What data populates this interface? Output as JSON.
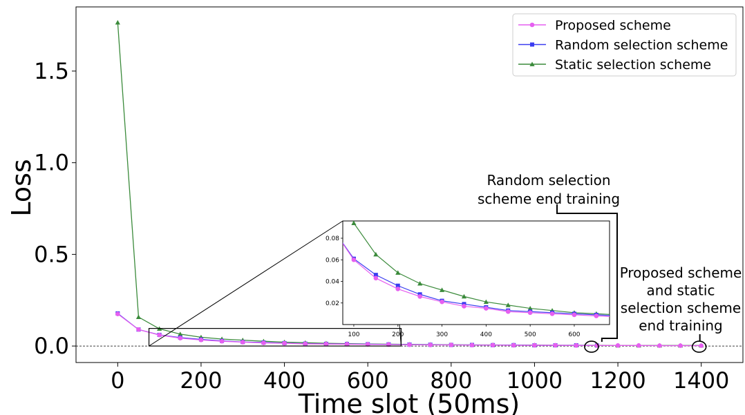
{
  "chart_data": {
    "type": "line",
    "xlabel": "Time slot (50ms)",
    "ylabel": "Loss",
    "xlim": [
      -100,
      1500
    ],
    "ylim": [
      -0.09,
      1.85
    ],
    "xticks": [
      "0",
      "200",
      "400",
      "600",
      "800",
      "1000",
      "1200",
      "1400"
    ],
    "yticks": [
      "0.0",
      "0.5",
      "1.0",
      "1.5"
    ],
    "legend_position": "top-right",
    "series": [
      {
        "name": "Proposed scheme",
        "color": "#e65ff0",
        "marker": "circle",
        "x": [
          0,
          50,
          100,
          150,
          200,
          250,
          300,
          350,
          400,
          450,
          500,
          550,
          600,
          650,
          700,
          750,
          800,
          850,
          900,
          950,
          1000,
          1050,
          1100,
          1150,
          1200,
          1250,
          1300,
          1350,
          1400
        ],
        "values": [
          0.175,
          0.09,
          0.06,
          0.043,
          0.033,
          0.026,
          0.021,
          0.017,
          0.015,
          0.012,
          0.011,
          0.01,
          0.009,
          0.008,
          0.007,
          0.006,
          0.006,
          0.005,
          0.005,
          0.004,
          0.004,
          0.004,
          0.003,
          0.003,
          0.003,
          0.003,
          0.002,
          0.002,
          0.002
        ]
      },
      {
        "name": "Random selection scheme",
        "color": "#3a3cf0",
        "marker": "square",
        "x": [
          0,
          50,
          100,
          150,
          200,
          250,
          300,
          350,
          400,
          450,
          500,
          550,
          600,
          650,
          700,
          750,
          800,
          850,
          900,
          950,
          1000,
          1050,
          1100,
          1150
        ],
        "values": [
          0.178,
          0.09,
          0.061,
          0.046,
          0.036,
          0.028,
          0.022,
          0.019,
          0.016,
          0.013,
          0.012,
          0.011,
          0.01,
          0.009,
          0.008,
          0.007,
          0.006,
          0.006,
          0.005,
          0.005,
          0.004,
          0.004,
          0.004,
          0.003
        ]
      },
      {
        "name": "Static selection scheme",
        "color": "#3a8a3a",
        "marker": "triangle",
        "x": [
          0,
          50,
          100,
          150,
          200,
          250,
          300,
          350,
          400,
          450,
          500,
          550,
          600,
          650,
          700,
          750,
          800,
          850,
          900,
          950,
          1000,
          1050,
          1100,
          1150,
          1200,
          1250,
          1300,
          1350,
          1400
        ],
        "values": [
          1.765,
          0.158,
          0.094,
          0.065,
          0.048,
          0.038,
          0.032,
          0.026,
          0.021,
          0.018,
          0.015,
          0.013,
          0.011,
          0.01,
          0.009,
          0.008,
          0.007,
          0.006,
          0.006,
          0.005,
          0.005,
          0.004,
          0.004,
          0.004,
          0.003,
          0.003,
          0.003,
          0.003,
          0.003
        ]
      }
    ],
    "inset": {
      "xlim": [
        75,
        680
      ],
      "ylim": [
        0.0,
        0.096
      ],
      "xticks": [
        "100",
        "200",
        "300",
        "400",
        "500",
        "600"
      ],
      "yticks": [
        "0.02",
        "0.04",
        "0.06",
        "0.08"
      ],
      "zoom_region_x": [
        75,
        680
      ],
      "zoom_region_y": [
        0.0,
        0.096
      ]
    },
    "annotations": [
      {
        "text_lines": [
          "Random selection",
          "scheme end training"
        ],
        "target_x": 1140
      },
      {
        "text_lines": [
          "Proposed scheme",
          "and static",
          "selection scheme",
          "end training"
        ],
        "target_x": 1400
      }
    ]
  }
}
